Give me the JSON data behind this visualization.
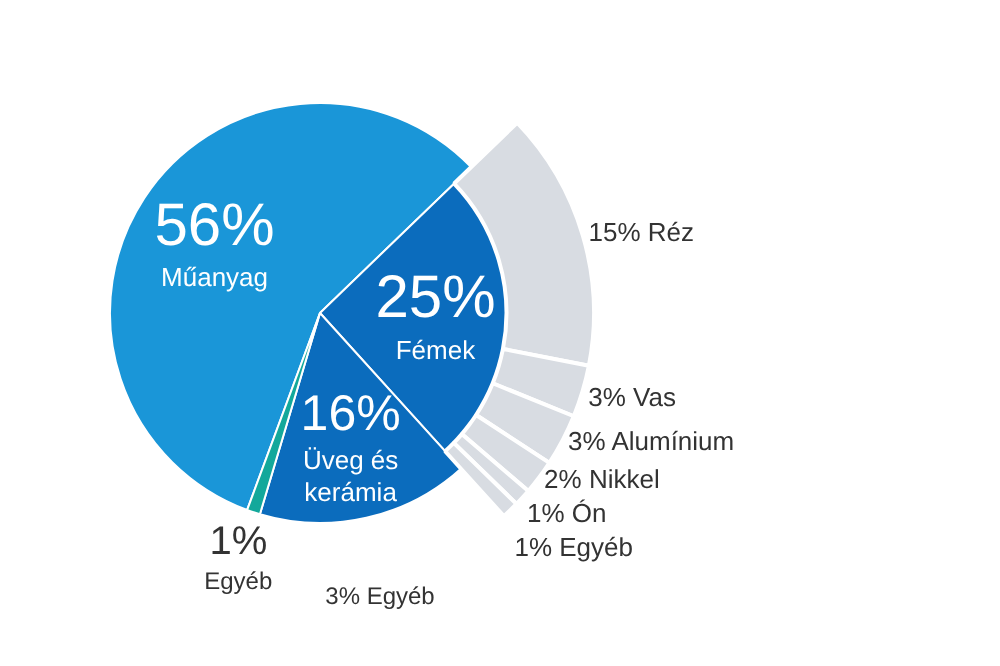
{
  "chart_data": [
    {
      "type": "pie",
      "categories": [
        "Műanyag",
        "Fémek",
        "Üveg és kerámia",
        "Egyéb"
      ],
      "values": [
        56,
        25,
        16,
        1
      ],
      "value_labels": [
        "56%",
        "25%",
        "16%",
        "1%"
      ],
      "colors": [
        "#1a96d8",
        "#0b6cbd",
        "#0b6cbd",
        "#13a89b"
      ],
      "annotations": [
        "3% Egyéb"
      ]
    },
    {
      "type": "donut",
      "categories": [
        "Réz",
        "Vas",
        "Alumínium",
        "Nikkel",
        "Ón",
        "Egyéb"
      ],
      "values": [
        15,
        3,
        3,
        2,
        1,
        1
      ],
      "value_labels": [
        "15%",
        "3%",
        "3%",
        "2%",
        "1%",
        "1%"
      ],
      "colors": [
        "#d8dce2",
        "#d8dce2",
        "#d8dce2",
        "#d8dce2",
        "#d8dce2",
        "#d8dce2"
      ]
    }
  ]
}
